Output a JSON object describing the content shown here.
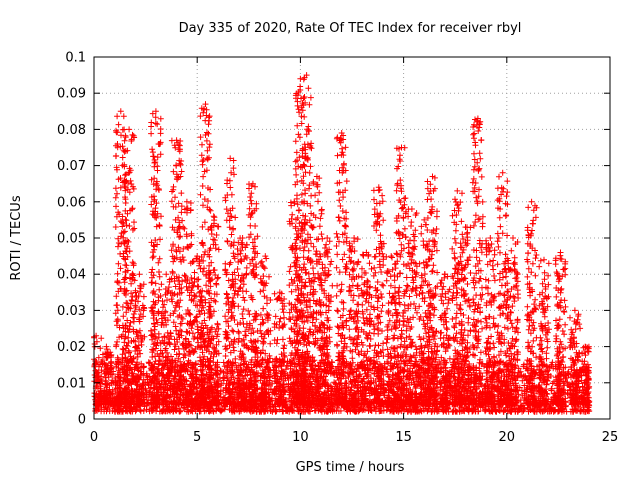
{
  "chart_data": {
    "type": "scatter",
    "title": "Day 335 of 2020, Rate Of TEC Index for receiver rbyl",
    "xlabel": "GPS time / hours",
    "ylabel": "ROTI / TECUs",
    "xlim": [
      0,
      25
    ],
    "ylim": [
      0,
      0.1
    ],
    "x_ticks": [
      0,
      5,
      10,
      15,
      20,
      25
    ],
    "y_ticks": [
      0,
      0.01,
      0.02,
      0.03,
      0.04,
      0.05,
      0.06,
      0.07,
      0.08,
      0.09,
      0.1
    ],
    "grid": true,
    "legend": "none",
    "marker": "plus",
    "series": [
      {
        "color": "#ff0000",
        "x_range": [
          0,
          24
        ],
        "baseline_range": [
          0.002,
          0.012
        ],
        "activity_peaks": [
          {
            "x": 0.1,
            "y": 0.023
          },
          {
            "x": 0.6,
            "y": 0.02
          },
          {
            "x": 1.3,
            "y": 0.085
          },
          {
            "x": 1.7,
            "y": 0.08
          },
          {
            "x": 2.2,
            "y": 0.04
          },
          {
            "x": 3.0,
            "y": 0.085
          },
          {
            "x": 3.5,
            "y": 0.04
          },
          {
            "x": 4.0,
            "y": 0.077
          },
          {
            "x": 4.5,
            "y": 0.06
          },
          {
            "x": 5.0,
            "y": 0.045
          },
          {
            "x": 5.4,
            "y": 0.087
          },
          {
            "x": 5.8,
            "y": 0.056
          },
          {
            "x": 6.6,
            "y": 0.072
          },
          {
            "x": 7.2,
            "y": 0.05
          },
          {
            "x": 7.7,
            "y": 0.065
          },
          {
            "x": 8.3,
            "y": 0.045
          },
          {
            "x": 9.0,
            "y": 0.035
          },
          {
            "x": 9.7,
            "y": 0.06
          },
          {
            "x": 10.0,
            "y": 0.094
          },
          {
            "x": 10.3,
            "y": 0.095
          },
          {
            "x": 10.8,
            "y": 0.067
          },
          {
            "x": 11.3,
            "y": 0.05
          },
          {
            "x": 12.0,
            "y": 0.079
          },
          {
            "x": 12.6,
            "y": 0.05
          },
          {
            "x": 13.2,
            "y": 0.046
          },
          {
            "x": 13.8,
            "y": 0.064
          },
          {
            "x": 14.4,
            "y": 0.045
          },
          {
            "x": 14.9,
            "y": 0.075
          },
          {
            "x": 15.4,
            "y": 0.058
          },
          {
            "x": 16.0,
            "y": 0.055
          },
          {
            "x": 16.4,
            "y": 0.067
          },
          {
            "x": 17.0,
            "y": 0.04
          },
          {
            "x": 17.6,
            "y": 0.063
          },
          {
            "x": 18.0,
            "y": 0.053
          },
          {
            "x": 18.6,
            "y": 0.083
          },
          {
            "x": 19.2,
            "y": 0.05
          },
          {
            "x": 19.8,
            "y": 0.068
          },
          {
            "x": 20.3,
            "y": 0.05
          },
          {
            "x": 21.2,
            "y": 0.06
          },
          {
            "x": 21.8,
            "y": 0.044
          },
          {
            "x": 22.6,
            "y": 0.046
          },
          {
            "x": 23.3,
            "y": 0.03
          },
          {
            "x": 23.8,
            "y": 0.02
          }
        ]
      }
    ]
  }
}
